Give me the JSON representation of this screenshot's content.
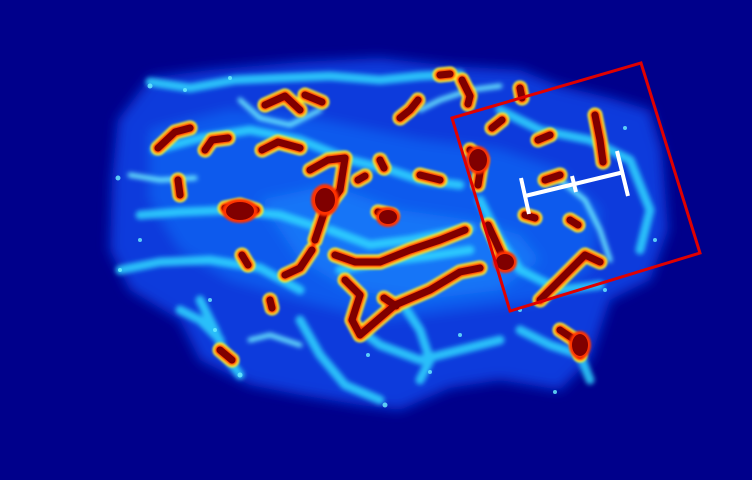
{
  "image": {
    "kind": "heatmap-map-visualization",
    "colormap": "jet",
    "colors": {
      "background": "#00008b",
      "low": "#0a3cff",
      "mid_low": "#18a8ff",
      "mid": "#3ff3ff",
      "mid_high": "#ffff33",
      "high": "#ff2a00",
      "peak": "#800000",
      "region_box": "#e00000",
      "ruler": "#ffffff"
    }
  },
  "overlay": {
    "has_region_box": true,
    "has_ruler": true
  }
}
